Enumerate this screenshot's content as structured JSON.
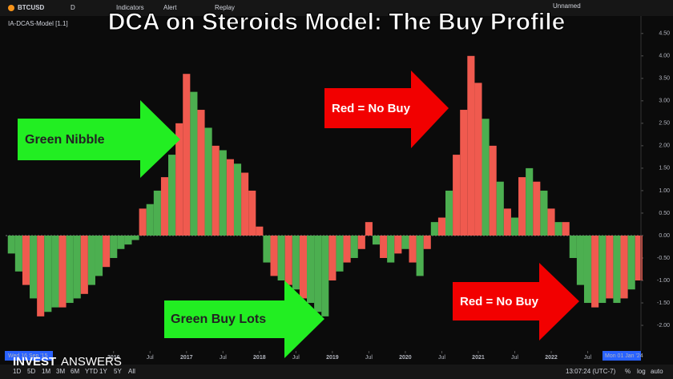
{
  "chart_data": {
    "type": "bar",
    "title": "DCA on Steroids Model: The Buy Profile",
    "indicator_label": "IA-DCAS-Model [1.1]",
    "x": [
      2014.6,
      2014.7,
      2014.8,
      2014.9,
      2015.0,
      2015.1,
      2015.2,
      2015.3,
      2015.4,
      2015.5,
      2015.6,
      2015.7,
      2015.8,
      2015.9,
      2016.0,
      2016.1,
      2016.2,
      2016.3,
      2016.4,
      2016.5,
      2016.6,
      2016.7,
      2016.8,
      2016.9,
      2017.0,
      2017.1,
      2017.2,
      2017.3,
      2017.4,
      2017.5,
      2017.6,
      2017.7,
      2017.8,
      2017.9,
      2018.0,
      2018.1,
      2018.2,
      2018.3,
      2018.4,
      2018.5,
      2018.6,
      2018.7,
      2018.8,
      2018.9,
      2019.0,
      2019.1,
      2019.2,
      2019.3,
      2019.4,
      2019.5,
      2019.6,
      2019.7,
      2019.8,
      2019.9,
      2020.0,
      2020.1,
      2020.2,
      2020.3,
      2020.4,
      2020.5,
      2020.6,
      2020.7,
      2020.8,
      2020.9,
      2021.0,
      2021.1,
      2021.2,
      2021.3,
      2021.4,
      2021.5,
      2021.6,
      2021.7,
      2021.8,
      2021.9,
      2022.0,
      2022.1,
      2022.2,
      2022.3,
      2022.4,
      2022.5,
      2022.6,
      2022.7,
      2022.8,
      2022.9,
      2023.0,
      2023.1,
      2023.2
    ],
    "values": [
      -0.4,
      -0.8,
      -1.1,
      -1.4,
      -1.8,
      -1.7,
      -1.6,
      -1.6,
      -1.5,
      -1.4,
      -1.3,
      -1.1,
      -0.9,
      -0.7,
      -0.5,
      -0.3,
      -0.2,
      -0.1,
      0.6,
      0.7,
      1.0,
      1.3,
      1.8,
      2.5,
      3.6,
      3.2,
      2.8,
      2.4,
      2.0,
      1.9,
      1.7,
      1.6,
      1.4,
      1.0,
      0.2,
      -0.6,
      -0.9,
      -1.0,
      -1.1,
      -1.2,
      -1.4,
      -1.5,
      -1.7,
      -1.8,
      -1.0,
      -0.8,
      -0.6,
      -0.5,
      -0.3,
      0.3,
      -0.2,
      -0.5,
      -0.6,
      -0.4,
      -0.3,
      -0.6,
      -0.9,
      -0.3,
      0.3,
      0.4,
      1.0,
      1.8,
      2.8,
      4.0,
      3.4,
      2.6,
      2.0,
      1.2,
      0.6,
      0.4,
      1.3,
      1.5,
      1.2,
      1.0,
      0.6,
      0.3,
      0.3,
      -0.5,
      -1.1,
      -1.5,
      -1.6,
      -1.5,
      -1.4,
      -1.5,
      -1.4,
      -1.2,
      -1.0
    ],
    "bar_colors": [
      "#4caf50",
      "#4caf50",
      "#f05a4f",
      "#4caf50",
      "#f05a4f",
      "#4caf50",
      "#4caf50",
      "#f05a4f",
      "#4caf50",
      "#4caf50",
      "#f05a4f",
      "#4caf50",
      "#4caf50",
      "#f05a4f",
      "#4caf50",
      "#4caf50",
      "#4caf50",
      "#4caf50",
      "#f05a4f",
      "#4caf50",
      "#4caf50",
      "#f05a4f",
      "#4caf50",
      "#f05a4f",
      "#f05a4f",
      "#4caf50",
      "#f05a4f",
      "#4caf50",
      "#f05a4f",
      "#4caf50",
      "#f05a4f",
      "#4caf50",
      "#f05a4f",
      "#f05a4f",
      "#f05a4f",
      "#4caf50",
      "#f05a4f",
      "#4caf50",
      "#f05a4f",
      "#4caf50",
      "#f05a4f",
      "#4caf50",
      "#4caf50",
      "#4caf50",
      "#f05a4f",
      "#4caf50",
      "#f05a4f",
      "#4caf50",
      "#f05a4f",
      "#f05a4f",
      "#4caf50",
      "#f05a4f",
      "#4caf50",
      "#f05a4f",
      "#4caf50",
      "#f05a4f",
      "#4caf50",
      "#f05a4f",
      "#4caf50",
      "#f05a4f",
      "#4caf50",
      "#f05a4f",
      "#f05a4f",
      "#f05a4f",
      "#f05a4f",
      "#4caf50",
      "#f05a4f",
      "#4caf50",
      "#f05a4f",
      "#4caf50",
      "#f05a4f",
      "#4caf50",
      "#f05a4f",
      "#4caf50",
      "#f05a4f",
      "#4caf50",
      "#f05a4f",
      "#4caf50",
      "#4caf50",
      "#4caf50",
      "#f05a4f",
      "#4caf50",
      "#f05a4f",
      "#4caf50",
      "#f05a4f",
      "#4caf50",
      "#f05a4f"
    ],
    "xlim": [
      2014.52,
      2023.23
    ],
    "xticks": [
      {
        "value": 2016,
        "label": "2016"
      },
      {
        "value": 2016.5,
        "label": "Jul"
      },
      {
        "value": 2017,
        "label": "2017"
      },
      {
        "value": 2017.5,
        "label": "Jul"
      },
      {
        "value": 2018,
        "label": "2018"
      },
      {
        "value": 2018.5,
        "label": "Jul"
      },
      {
        "value": 2019,
        "label": "2019"
      },
      {
        "value": 2019.5,
        "label": "Jul"
      },
      {
        "value": 2020,
        "label": "2020"
      },
      {
        "value": 2020.5,
        "label": "Jul"
      },
      {
        "value": 2021,
        "label": "2021"
      },
      {
        "value": 2021.5,
        "label": "Jul"
      },
      {
        "value": 2022,
        "label": "2022"
      },
      {
        "value": 2022.5,
        "label": "Jul"
      }
    ],
    "ylim": [
      -2.57,
      4.71
    ],
    "yticks": [
      {
        "value": 4.5,
        "label": "4.50"
      },
      {
        "value": 4,
        "label": "4.00"
      },
      {
        "value": 3.5,
        "label": "3.50"
      },
      {
        "value": 3,
        "label": "3.00"
      },
      {
        "value": 2.5,
        "label": "2.50"
      },
      {
        "value": 2,
        "label": "2.00"
      },
      {
        "value": 1.5,
        "label": "1.50"
      },
      {
        "value": 1,
        "label": "1.00"
      },
      {
        "value": 0.5,
        "label": "0.50"
      },
      {
        "value": 0,
        "label": "0.00"
      },
      {
        "value": -0.5,
        "label": "-0.50"
      },
      {
        "value": -1,
        "label": "-1.00"
      },
      {
        "value": -1.5,
        "label": "-1.50"
      },
      {
        "value": -2,
        "label": "-2.00"
      }
    ],
    "annotations": [
      "Green Nibble",
      "Red = No Buy",
      "Green Buy Lots",
      "Red = No Buy"
    ],
    "start_date": "Wed 16 Sep '15",
    "end_date": "Mon 01 Jan '24"
  },
  "ui": {
    "symbol": "BTCUSD",
    "interval": "D",
    "toolbar": [
      "Indicators",
      "Alert",
      "Replay"
    ],
    "layout": "Unnamed",
    "ranges": [
      "1D",
      "5D",
      "1M",
      "3M",
      "6M",
      "YTD",
      "1Y",
      "5Y",
      "All"
    ],
    "clock": "13:07:24 (UTC-7)",
    "scale": [
      "%",
      "log",
      "auto"
    ],
    "brand": [
      "INVEST",
      "ANSWERS"
    ]
  }
}
